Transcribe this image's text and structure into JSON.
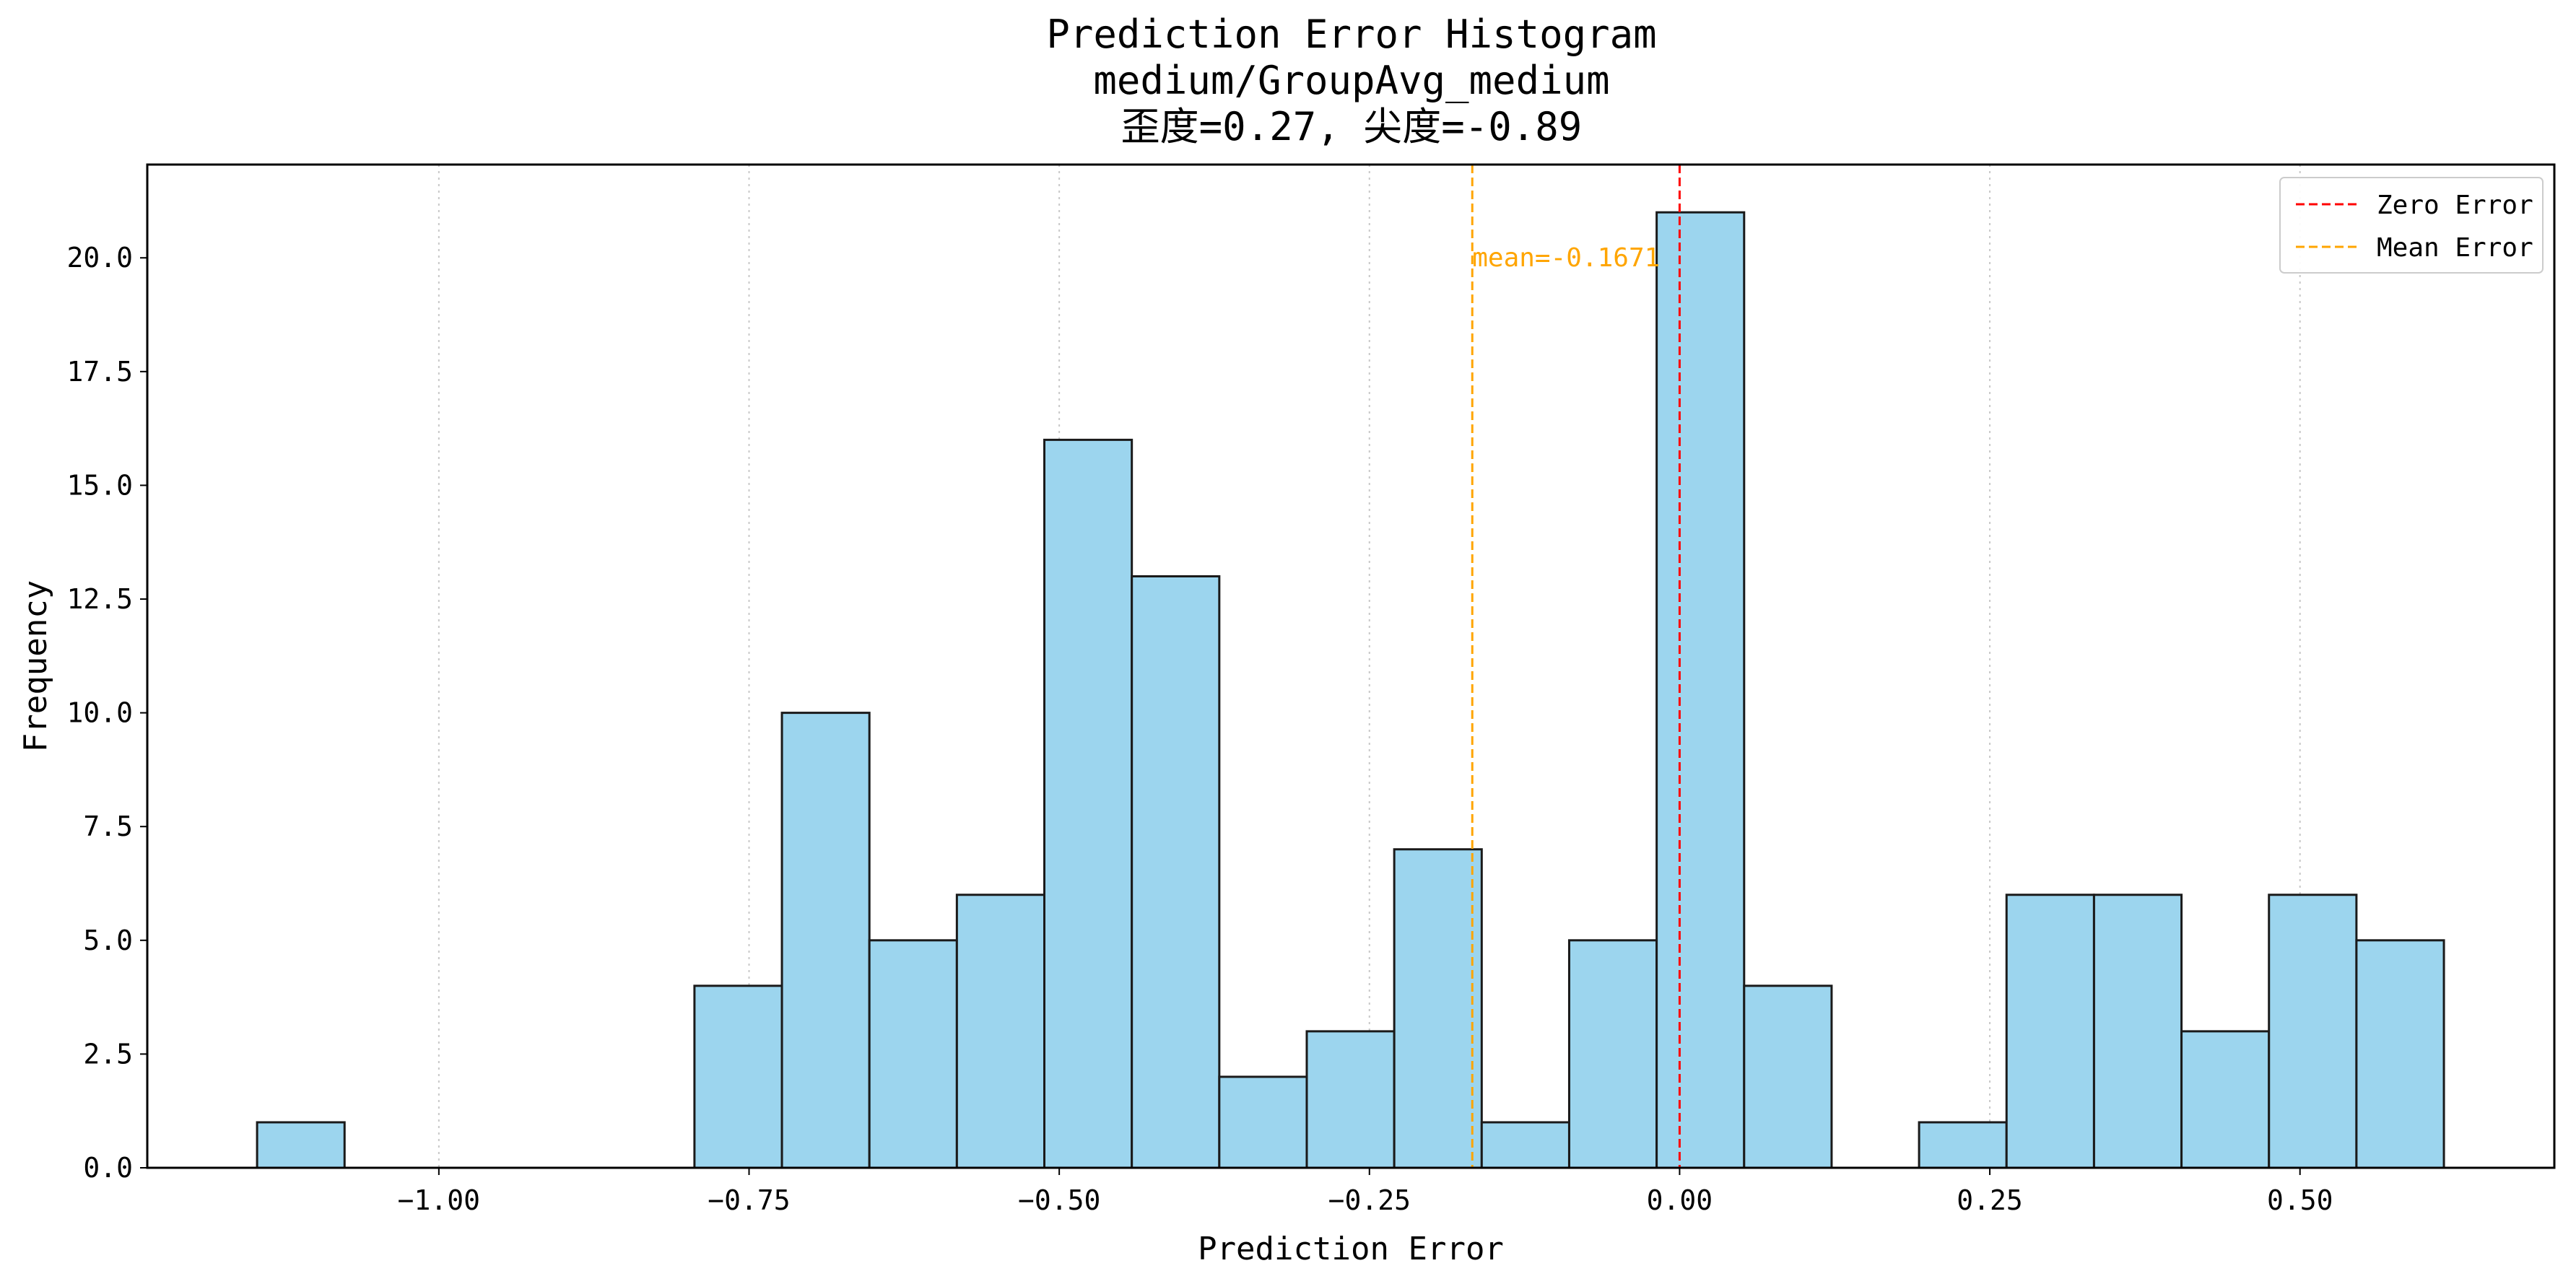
{
  "chart_data": {
    "type": "bar",
    "title_lines": [
      "Prediction Error Histogram",
      "medium/GroupAvg_medium",
      "歪度=0.27, 尖度=-0.89"
    ],
    "xlabel": "Prediction Error",
    "ylabel": "Frequency",
    "xlim": [
      -1.235,
      0.705
    ],
    "ylim": [
      0,
      22.05
    ],
    "x_ticks": [
      -1.0,
      -0.75,
      -0.5,
      -0.25,
      0.0,
      0.25,
      0.5
    ],
    "x_tick_labels": [
      "−1.00",
      "−0.75",
      "−0.50",
      "−0.25",
      "0.00",
      "0.25",
      "0.50"
    ],
    "y_ticks": [
      0,
      2.5,
      5,
      7.5,
      10,
      12.5,
      15,
      17.5,
      20
    ],
    "y_tick_labels": [
      "0.0",
      "2.5",
      "5.0",
      "7.5",
      "10.0",
      "12.5",
      "15.0",
      "17.5",
      "20.0"
    ],
    "grid": "vertical dotted",
    "bin_width": 0.0705,
    "bin_starts": [
      -1.1465,
      -1.076,
      -1.0055,
      -0.935,
      -0.8645,
      -0.794,
      -0.7235,
      -0.653,
      -0.5825,
      -0.512,
      -0.4415,
      -0.371,
      -0.3005,
      -0.23,
      -0.1595,
      -0.089,
      -0.0185,
      0.052,
      0.1225,
      0.193,
      0.2635,
      0.334,
      0.4045,
      0.475,
      0.5455
    ],
    "values": [
      1,
      0,
      0,
      0,
      0,
      4,
      10,
      5,
      6,
      16,
      13,
      2,
      3,
      7,
      1,
      5,
      21,
      4,
      0,
      1,
      6,
      6,
      3,
      6,
      5
    ],
    "bar_color": "#9cd5ee",
    "bar_edge_color": "#1a1a1a",
    "zero_line": {
      "x": 0.0,
      "color": "#ff0000",
      "label": "Zero Error"
    },
    "mean_line": {
      "x": -0.1671,
      "color": "#ffa500",
      "label": "Mean Error",
      "annotation": "mean=-0.1671"
    },
    "legend_position": "upper right"
  }
}
